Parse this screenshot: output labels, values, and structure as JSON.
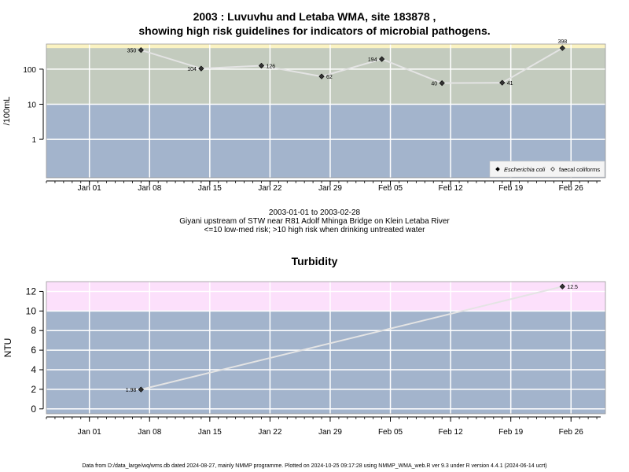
{
  "title_line1": "2003 : Luvuvhu and Letaba WMA, site 183878 ,",
  "title_line2": "showing high risk guidelines for indicators of microbial pathogens.",
  "caption_line1": "2003-01-01 to 2003-02-28",
  "caption_line2": "Giyani upstream of STW near R81 Adolf Mhinga Bridge on Klein Letaba River",
  "caption_line3": "<=10 low-med risk; >10 high risk when drinking untreated water",
  "turbidity_title": "Turbidity",
  "footer": "Data from D:/data_large/wq/wms.db dated 2024-08-27, mainly NMMP programme. Plotted on 2024-10-25 09:17:28 using NMMP_WMA_web.R ver 9.3 under R version 4.4.1 (2024-06-14 ucrt)",
  "colors": {
    "low_band": "#a3b4cc",
    "mid_band": "#c3cbbe",
    "high_band_top": "#fbf3c2",
    "turb_high_band": "#fce0fb",
    "grid": "#ffffff",
    "line": "#e4e4e4",
    "point": "#333333"
  },
  "chart_data": [
    {
      "type": "scatter",
      "ylabel": "/100mL",
      "xlabel": "",
      "y_scale": "log10",
      "ylim": [
        0.08,
        520
      ],
      "xlim": [
        "2002-12-27",
        "2003-03-02"
      ],
      "x_ticks": [
        "Jan 01",
        "Jan 08",
        "Jan 15",
        "Jan 22",
        "Jan 29",
        "Feb 05",
        "Feb 12",
        "Feb 19",
        "Feb 26"
      ],
      "x_tick_dates": [
        "2003-01-01",
        "2003-01-08",
        "2003-01-15",
        "2003-01-22",
        "2003-01-29",
        "2003-02-05",
        "2003-02-12",
        "2003-02-19",
        "2003-02-26"
      ],
      "y_ticks": [
        1,
        10,
        100
      ],
      "y_tick_labels": [
        "1",
        "10",
        "100"
      ],
      "grid": true,
      "bands": [
        {
          "from": 0.08,
          "to": 10,
          "color": "#a3b4cc"
        },
        {
          "from": 10,
          "to": 400,
          "color": "#c3cbbe"
        },
        {
          "from": 400,
          "to": 520,
          "color": "#fbf3c2"
        }
      ],
      "legend_position": "bottom-right",
      "legend": [
        {
          "label": "Escherichia coli",
          "marker": "filled-diamond"
        },
        {
          "label": "faecal coliforms",
          "marker": "open-diamond"
        }
      ],
      "series": [
        {
          "name": "Escherichia coli",
          "x": [
            "2003-01-07",
            "2003-01-14",
            "2003-01-21",
            "2003-01-28",
            "2003-02-04",
            "2003-02-11",
            "2003-02-18",
            "2003-02-25"
          ],
          "y": [
            350,
            104,
            126,
            62,
            194,
            40,
            41,
            398
          ],
          "labels": [
            "350",
            "104",
            "126",
            "62",
            "194",
            "40",
            "41",
            "398"
          ],
          "label_side": [
            "left",
            "left",
            "right",
            "right",
            "left",
            "left",
            "right",
            "top"
          ]
        }
      ]
    },
    {
      "type": "scatter",
      "title": "Turbidity",
      "ylabel": "NTU",
      "xlabel": "",
      "ylim": [
        -0.5,
        13
      ],
      "xlim": [
        "2002-12-27",
        "2003-03-02"
      ],
      "x_ticks": [
        "Jan 01",
        "Jan 08",
        "Jan 15",
        "Jan 22",
        "Jan 29",
        "Feb 05",
        "Feb 12",
        "Feb 19",
        "Feb 26"
      ],
      "x_tick_dates": [
        "2003-01-01",
        "2003-01-08",
        "2003-01-15",
        "2003-01-22",
        "2003-01-29",
        "2003-02-05",
        "2003-02-12",
        "2003-02-19",
        "2003-02-26"
      ],
      "y_ticks": [
        0,
        2,
        4,
        6,
        8,
        10,
        12
      ],
      "y_tick_labels": [
        "0",
        "2",
        "4",
        "6",
        "8",
        "10",
        "12"
      ],
      "grid": true,
      "bands": [
        {
          "from": -0.5,
          "to": 10,
          "color": "#a3b4cc"
        },
        {
          "from": 10,
          "to": 13,
          "color": "#fce0fb"
        }
      ],
      "series": [
        {
          "x": [
            "2003-01-07",
            "2003-02-25"
          ],
          "y": [
            1.98,
            12.5
          ],
          "labels": [
            "1.98",
            "12.5"
          ],
          "label_side": [
            "left",
            "right"
          ]
        }
      ]
    }
  ]
}
